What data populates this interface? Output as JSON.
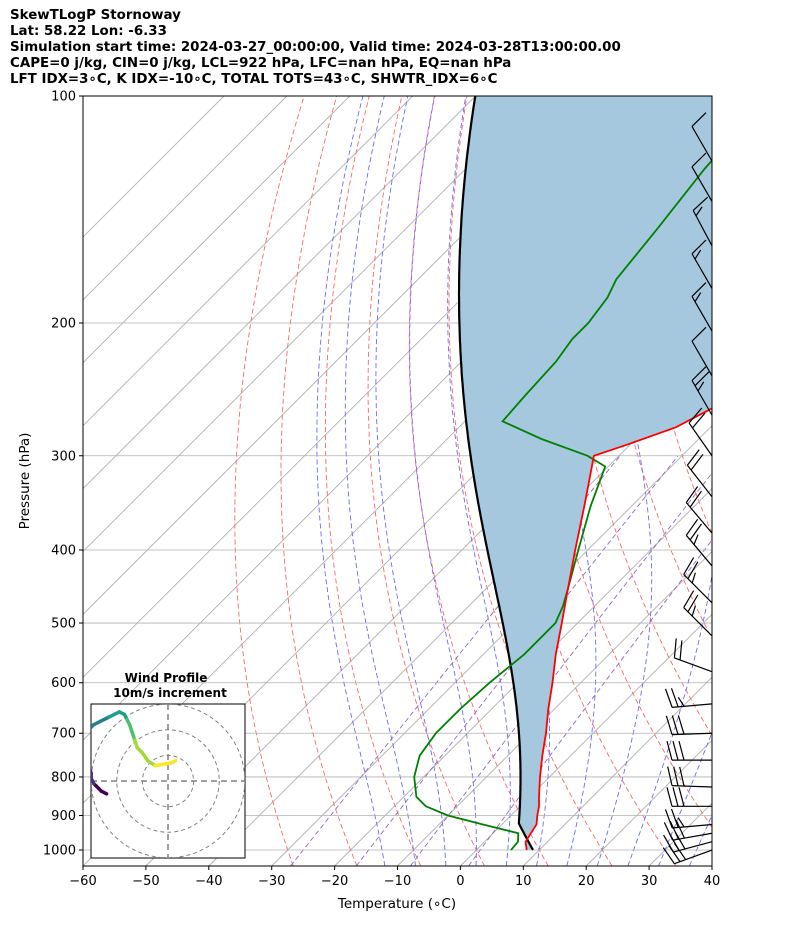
{
  "header": {
    "lines": [
      "SkewTLogP Stornoway",
      "Lat: 58.22   Lon: -6.33",
      "Simulation start time: 2024-03-27_00:00:00, Valid time: 2024-03-28T13:00:00.00",
      "CAPE=0 j/kg, CIN=0 j/kg, LCL=922 hPa, LFC=nan hPa, EQ=nan hPa",
      "LFT IDX=3∘C, K IDX=-10∘C, TOTAL TOTS=43∘C, SHWTR_IDX=6∘C"
    ]
  },
  "chart_data": {
    "type": "line",
    "xlabel": "Temperature (∘C)",
    "ylabel": "Pressure (hPa)",
    "xlim": [
      -60,
      40
    ],
    "ylim": [
      1050,
      100
    ],
    "y_scale": "log",
    "x_ticks": [
      -60,
      -50,
      -40,
      -30,
      -20,
      -10,
      0,
      10,
      20,
      30,
      40
    ],
    "y_ticks": [
      100,
      200,
      300,
      400,
      500,
      600,
      700,
      800,
      900,
      1000
    ],
    "grid": true,
    "series": [
      {
        "role": "temperature",
        "color": "#ff0000",
        "points": [
          {
            "p": 1000,
            "t": 8.0
          },
          {
            "p": 975,
            "t": 6.5
          },
          {
            "p": 950,
            "t": 6.0
          },
          {
            "p": 925,
            "t": 5.5
          },
          {
            "p": 900,
            "t": 4.2
          },
          {
            "p": 875,
            "t": 3.0
          },
          {
            "p": 850,
            "t": 1.5
          },
          {
            "p": 800,
            "t": -1.5
          },
          {
            "p": 750,
            "t": -4.5
          },
          {
            "p": 700,
            "t": -7.5
          },
          {
            "p": 650,
            "t": -11.0
          },
          {
            "p": 600,
            "t": -14.5
          },
          {
            "p": 550,
            "t": -18.5
          },
          {
            "p": 500,
            "t": -22.5
          },
          {
            "p": 450,
            "t": -27.0
          },
          {
            "p": 400,
            "t": -32.0
          },
          {
            "p": 350,
            "t": -37.5
          },
          {
            "p": 300,
            "t": -44.0
          },
          {
            "p": 290,
            "t": -40.5
          },
          {
            "p": 275,
            "t": -35.5
          },
          {
            "p": 250,
            "t": -31.0
          },
          {
            "p": 225,
            "t": -31.5
          },
          {
            "p": 200,
            "t": -30.5
          },
          {
            "p": 175,
            "t": -25.5
          },
          {
            "p": 150,
            "t": -20.5
          },
          {
            "p": 125,
            "t": -17.0
          },
          {
            "p": 115,
            "t": -16.8
          },
          {
            "p": 105,
            "t": -14.5
          },
          {
            "p": 100,
            "t": -12.5
          }
        ]
      },
      {
        "role": "dewpoint",
        "color": "#008000",
        "points": [
          {
            "p": 1000,
            "t": 5.5
          },
          {
            "p": 975,
            "t": 5.3
          },
          {
            "p": 950,
            "t": 4.0
          },
          {
            "p": 925,
            "t": -3.0
          },
          {
            "p": 900,
            "t": -10.0
          },
          {
            "p": 875,
            "t": -15.0
          },
          {
            "p": 850,
            "t": -18.0
          },
          {
            "p": 800,
            "t": -21.5
          },
          {
            "p": 750,
            "t": -24.0
          },
          {
            "p": 700,
            "t": -25.0
          },
          {
            "p": 650,
            "t": -25.0
          },
          {
            "p": 600,
            "t": -24.5
          },
          {
            "p": 550,
            "t": -23.5
          },
          {
            "p": 500,
            "t": -23.5
          },
          {
            "p": 475,
            "t": -25.0
          },
          {
            "p": 450,
            "t": -27.0
          },
          {
            "p": 400,
            "t": -31.5
          },
          {
            "p": 350,
            "t": -36.5
          },
          {
            "p": 310,
            "t": -40.5
          },
          {
            "p": 300,
            "t": -45.0
          },
          {
            "p": 285,
            "t": -55.0
          },
          {
            "p": 270,
            "t": -64.0
          },
          {
            "p": 250,
            "t": -64.5
          },
          {
            "p": 225,
            "t": -65.0
          },
          {
            "p": 210,
            "t": -66.0
          },
          {
            "p": 200,
            "t": -66.0
          },
          {
            "p": 185,
            "t": -67.0
          },
          {
            "p": 175,
            "t": -68.5
          },
          {
            "p": 150,
            "t": -70.0
          },
          {
            "p": 125,
            "t": -72.0
          },
          {
            "p": 100,
            "t": -73.5
          }
        ]
      }
    ],
    "parcel_profile": {
      "color": "#000000",
      "surface_p": 1000,
      "surface_t": 9.0,
      "lcl_p": 922
    },
    "cape_cin_fill": {
      "color": "#a6c8df"
    },
    "reference_lines": {
      "isotherms_color": "#b0b0b0",
      "dry_adiabats_color": "#ff6666",
      "moist_adiabats_color": "#6a6aff",
      "mixing_ratio_color": "#9467bd"
    },
    "wind_barbs": [
      {
        "p": 1000,
        "spd_kt": 30,
        "dir_deg": 250
      },
      {
        "p": 975,
        "spd_kt": 30,
        "dir_deg": 255
      },
      {
        "p": 950,
        "spd_kt": 30,
        "dir_deg": 260
      },
      {
        "p": 925,
        "spd_kt": 25,
        "dir_deg": 265
      },
      {
        "p": 875,
        "spd_kt": 30,
        "dir_deg": 270
      },
      {
        "p": 825,
        "spd_kt": 30,
        "dir_deg": 272
      },
      {
        "p": 760,
        "spd_kt": 30,
        "dir_deg": 270
      },
      {
        "p": 700,
        "spd_kt": 30,
        "dir_deg": 268
      },
      {
        "p": 640,
        "spd_kt": 25,
        "dir_deg": 265
      },
      {
        "p": 580,
        "spd_kt": 20,
        "dir_deg": 290
      },
      {
        "p": 520,
        "spd_kt": 25,
        "dir_deg": 315
      },
      {
        "p": 470,
        "spd_kt": 25,
        "dir_deg": 315
      },
      {
        "p": 420,
        "spd_kt": 25,
        "dir_deg": 320
      },
      {
        "p": 380,
        "spd_kt": 20,
        "dir_deg": 320
      },
      {
        "p": 340,
        "spd_kt": 20,
        "dir_deg": 322
      },
      {
        "p": 300,
        "spd_kt": 20,
        "dir_deg": 325
      },
      {
        "p": 265,
        "spd_kt": 25,
        "dir_deg": 330
      },
      {
        "p": 235,
        "spd_kt": 10,
        "dir_deg": 330
      },
      {
        "p": 205,
        "spd_kt": 15,
        "dir_deg": 330
      },
      {
        "p": 180,
        "spd_kt": 15,
        "dir_deg": 330
      },
      {
        "p": 158,
        "spd_kt": 15,
        "dir_deg": 332
      },
      {
        "p": 138,
        "spd_kt": 10,
        "dir_deg": 330
      },
      {
        "p": 122,
        "spd_kt": 10,
        "dir_deg": 330
      }
    ],
    "hodograph": {
      "title": "Wind Profile",
      "subtitle": "10m/s increment",
      "ring_step_ms": 10,
      "rings": 3,
      "colormap": "viridis",
      "points": [
        {
          "u": 3,
          "v": 8
        },
        {
          "u": 1,
          "v": 7
        },
        {
          "u": -2,
          "v": 6.5
        },
        {
          "u": -5,
          "v": 6
        },
        {
          "u": -8,
          "v": 8
        },
        {
          "u": -10,
          "v": 11
        },
        {
          "u": -12,
          "v": 13
        },
        {
          "u": -13,
          "v": 16
        },
        {
          "u": -14,
          "v": 19
        },
        {
          "u": -15,
          "v": 22
        },
        {
          "u": -16,
          "v": 24
        },
        {
          "u": -17,
          "v": 26
        },
        {
          "u": -19,
          "v": 27
        },
        {
          "u": -21,
          "v": 26
        },
        {
          "u": -23,
          "v": 25
        },
        {
          "u": -25,
          "v": 24
        },
        {
          "u": -29,
          "v": 22
        },
        {
          "u": -31,
          "v": 20
        },
        {
          "u": -32,
          "v": 17
        },
        {
          "u": -32.5,
          "v": 14
        },
        {
          "u": -32,
          "v": 10
        },
        {
          "u": -31,
          "v": 6
        },
        {
          "u": -30,
          "v": 3
        },
        {
          "u": -30,
          "v": 1
        },
        {
          "u": -29,
          "v": -1
        },
        {
          "u": -28,
          "v": -2
        },
        {
          "u": -27,
          "v": -3
        },
        {
          "u": -26,
          "v": -4
        },
        {
          "u": -24,
          "v": -5
        }
      ]
    }
  }
}
